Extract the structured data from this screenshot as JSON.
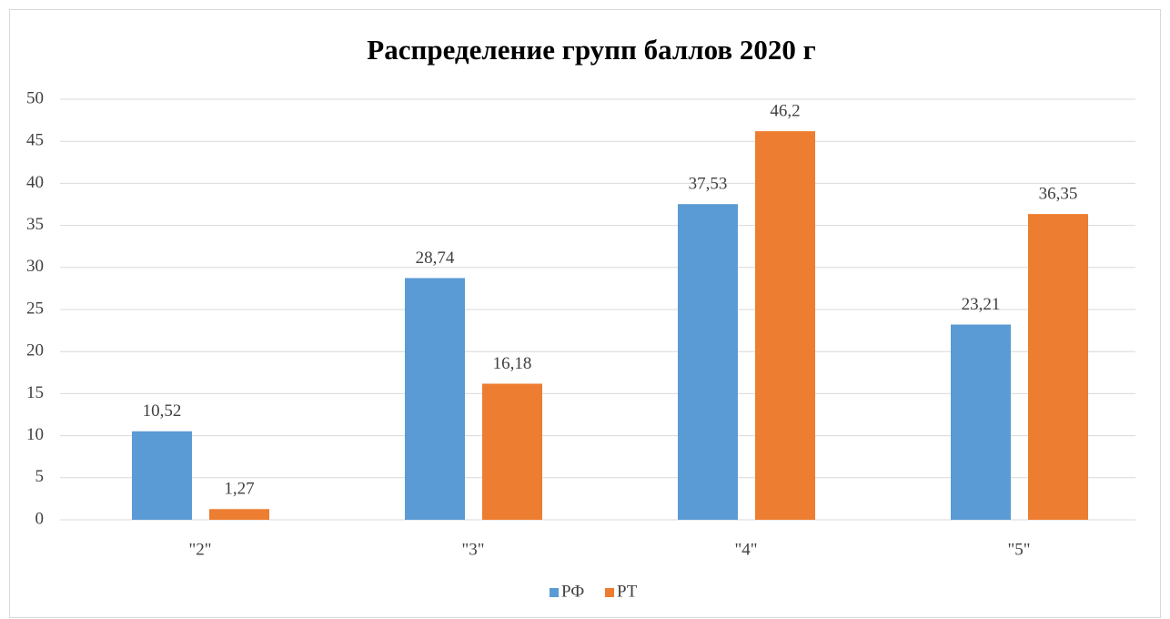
{
  "chart_data": {
    "type": "bar",
    "title": "Распределение групп баллов 2020 г",
    "categories": [
      "\"2\"",
      "\"3\"",
      "\"4\"",
      "\"5\""
    ],
    "series": [
      {
        "name": "РФ",
        "color": "#5b9bd5",
        "values": [
          10.52,
          28.74,
          37.53,
          23.21
        ],
        "value_labels": [
          "10,52",
          "28,74",
          "37,53",
          "23,21"
        ]
      },
      {
        "name": "РТ",
        "color": "#ed7d31",
        "values": [
          1.27,
          16.18,
          46.2,
          36.35
        ],
        "value_labels": [
          "1,27",
          "16,18",
          "46,2",
          "36,35"
        ]
      }
    ],
    "ylim": [
      0,
      50
    ],
    "yticks": [
      0,
      5,
      10,
      15,
      20,
      25,
      30,
      35,
      40,
      45,
      50
    ],
    "grid": true,
    "legend": "bottom"
  }
}
